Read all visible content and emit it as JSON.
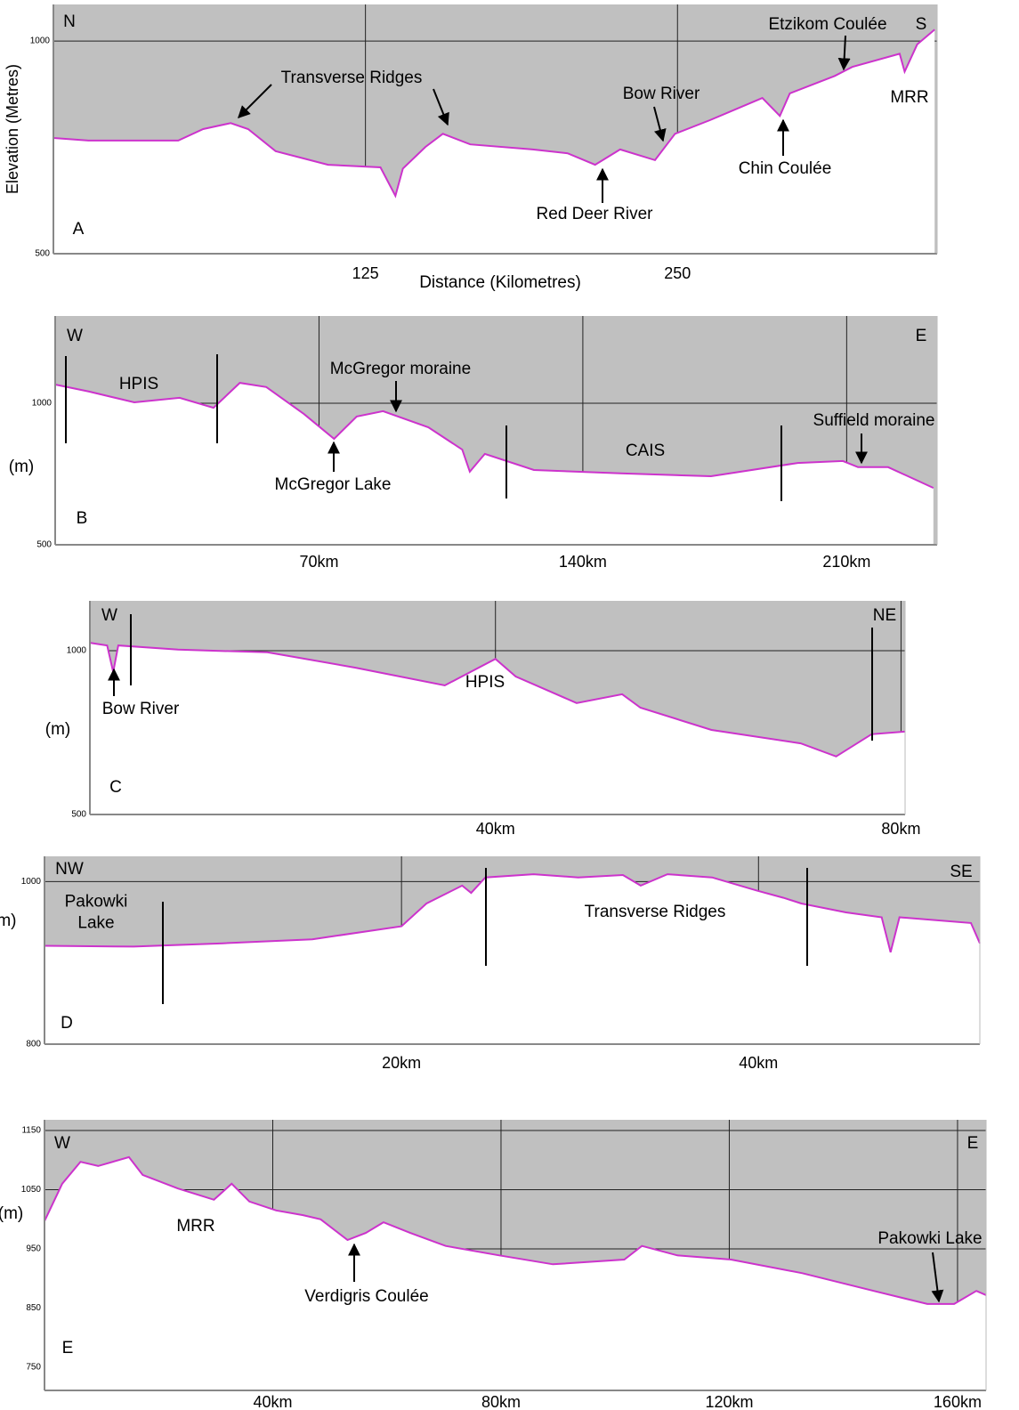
{
  "chart_data": [
    {
      "type": "area",
      "y_label": "Elevation (Metres)",
      "x_label": "Distance (Kilometres)",
      "x": [
        0,
        14,
        50,
        60,
        71,
        78,
        89,
        110,
        131,
        137,
        140,
        149,
        156,
        167,
        192,
        206,
        217,
        227,
        241,
        249,
        263,
        284,
        291,
        295,
        313,
        320,
        339,
        341,
        346,
        353
      ],
      "values": [
        772,
        766,
        766,
        793,
        807,
        793,
        741,
        709,
        703,
        636,
        700,
        751,
        782,
        757,
        745,
        736,
        709,
        745,
        720,
        782,
        814,
        866,
        824,
        877,
        918,
        939,
        970,
        928,
        992,
        1027
      ],
      "color": "#cc33cc",
      "sky_color": "#c0c0c0",
      "xlim": [
        0,
        354
      ],
      "ylim": [
        500,
        1086
      ],
      "xticks": [
        125,
        250
      ],
      "yticks": [
        500,
        1000
      ],
      "grid": true,
      "annotations": [
        "N",
        "S",
        "A",
        "Transverse Ridges",
        "Red Deer River",
        "Bow River",
        "Chin Coulée",
        "Etzikom Coulée",
        "MRR"
      ]
    },
    {
      "type": "area",
      "y_label": "(m)",
      "x": [
        0,
        9,
        21,
        33,
        42,
        49,
        56,
        66,
        74,
        80,
        87,
        99,
        108,
        110,
        114,
        127,
        150,
        174,
        197,
        209,
        213,
        221,
        233
      ],
      "values": [
        1066,
        1041,
        1003,
        1019,
        984,
        1072,
        1057,
        962,
        874,
        953,
        972,
        915,
        836,
        758,
        821,
        764,
        752,
        742,
        789,
        796,
        774,
        774,
        701
      ],
      "color": "#cc33cc",
      "sky_color": "#c0c0c0",
      "xlim": [
        0,
        234
      ],
      "ylim": [
        500,
        1308
      ],
      "xticks": [
        {
          "value": 70,
          "label": "70km"
        },
        {
          "value": 140,
          "label": "140km"
        },
        {
          "value": 210,
          "label": "210km"
        }
      ],
      "yticks": [
        500,
        1000
      ],
      "grid": true,
      "annotations": [
        "W",
        "E",
        "B",
        "HPIS",
        "McGregor moraine",
        "McGregor Lake",
        "CAIS",
        "Suffield moraine"
      ]
    },
    {
      "type": "area",
      "y_label": "(m)",
      "x": [
        0,
        1.7,
        2.3,
        2.8,
        8.7,
        17.5,
        26.2,
        35,
        40,
        42,
        48,
        52.5,
        54.3,
        61.3,
        70.1,
        73.6,
        77.1,
        80.4
      ],
      "values": [
        1024,
        1016,
        935,
        1016,
        1003,
        995,
        948,
        894,
        975,
        921,
        840,
        867,
        826,
        758,
        717,
        677,
        745,
        753
      ],
      "color": "#cc33cc",
      "sky_color": "#c0c0c0",
      "xlim": [
        0,
        80.4
      ],
      "ylim": [
        500,
        1152
      ],
      "xticks": [
        {
          "value": 40,
          "label": "40km"
        },
        {
          "value": 80,
          "label": "80km"
        }
      ],
      "yticks": [
        500,
        1000
      ],
      "grid": true,
      "annotations": [
        "W",
        "NE",
        "C",
        "Bow River",
        "HPIS"
      ]
    },
    {
      "type": "area",
      "y_label": "(m)",
      "x": [
        0,
        5,
        10,
        15,
        20,
        21.4,
        23.4,
        23.9,
        24.7,
        27.4,
        29.9,
        32.4,
        33.4,
        34.9,
        37.4,
        39.9,
        41.4,
        42.4,
        44.9,
        46.9,
        47.4,
        47.9,
        51.9,
        52.4
      ],
      "values": [
        921,
        920,
        924,
        929,
        945,
        973,
        995,
        986,
        1005,
        1009,
        1005,
        1008,
        995,
        1009,
        1005,
        989,
        980,
        973,
        962,
        956,
        913,
        956,
        949,
        924
      ],
      "color": "#cc33cc",
      "sky_color": "#c0c0c0",
      "xlim": [
        0,
        52.4
      ],
      "ylim": [
        800,
        1031
      ],
      "xticks": [
        {
          "value": 20,
          "label": "20km"
        },
        {
          "value": 40,
          "label": "40km"
        }
      ],
      "yticks": [
        800,
        1000
      ],
      "grid": true,
      "annotations": [
        "NW",
        "SE",
        "D",
        "Pakowki Lake",
        "Transverse Ridges"
      ]
    },
    {
      "type": "area",
      "y_label": "(m)",
      "x": [
        0,
        3.1,
        6.3,
        9.4,
        14.8,
        17.2,
        23.4,
        29.7,
        32.8,
        35.9,
        40.6,
        45.3,
        48.4,
        53.1,
        56.3,
        59.4,
        64.1,
        70.3,
        79.7,
        89.1,
        101.6,
        104.7,
        110.9,
        120.3,
        132.8,
        145.3,
        154.7,
        159.4,
        163.3,
        165
      ],
      "values": [
        997,
        1060,
        1097,
        1090,
        1105,
        1075,
        1052,
        1033,
        1060,
        1030,
        1015,
        1007,
        1000,
        965,
        977,
        995,
        977,
        955,
        939,
        924,
        932,
        955,
        939,
        932,
        909,
        879,
        857,
        857,
        879,
        872
      ],
      "color": "#cc33cc",
      "sky_color": "#c0c0c0",
      "xlim": [
        0,
        165
      ],
      "ylim": [
        711,
        1168
      ],
      "xticks": [
        {
          "value": 40,
          "label": "40km"
        },
        {
          "value": 80,
          "label": "80km"
        },
        {
          "value": 120,
          "label": "120km"
        },
        {
          "value": 160,
          "label": "160km"
        }
      ],
      "yticks": [
        750,
        850,
        950,
        1050,
        1150
      ],
      "grid": true,
      "annotations": [
        "W",
        "E",
        "E",
        "MRR",
        "Verdigris Coulée",
        "Pakowki Lake"
      ]
    }
  ]
}
